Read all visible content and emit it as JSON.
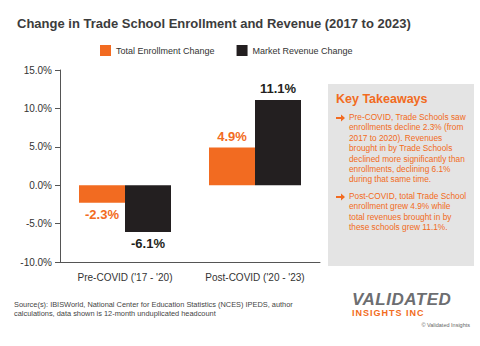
{
  "chart_data": {
    "type": "bar",
    "title": "Change in Trade School Enrollment and Revenue (2017 to 2023)",
    "categories": [
      "Pre-COVID ('17 - '20)",
      "Post-COVID ('20 - '23)"
    ],
    "series": [
      {
        "name": "Total Enrollment Change",
        "color": "#f26b21",
        "values": [
          -2.3,
          4.9
        ],
        "value_labels": [
          "-2.3%",
          "4.9%"
        ]
      },
      {
        "name": "Market Revenue Change",
        "color": "#231f20",
        "values": [
          -6.1,
          11.1
        ],
        "value_labels": [
          "-6.1%",
          "11.1%"
        ]
      }
    ],
    "ylim": [
      -10,
      15
    ],
    "yticks": [
      {
        "value": -10,
        "label": "-10.0%"
      },
      {
        "value": -5,
        "label": "-5.0%"
      },
      {
        "value": 0,
        "label": "0.0%"
      },
      {
        "value": 5,
        "label": "5.0%"
      },
      {
        "value": 10,
        "label": "10.0%"
      },
      {
        "value": 15,
        "label": "15.0%"
      }
    ],
    "grid": false,
    "legend": "top",
    "data_labels": true
  },
  "key_takeaways": {
    "title": "Key Takeaways",
    "items": [
      "Pre-COVID, Trade Schools saw enrollments decline 2.3% (from 2017 to 2020). Revenues brought in by Trade Schools declined more significantly than enrollments, declining 6.1% during that same time.",
      "Post-COVID, total Trade School enrollment grew 4.9% while total revenues brought in by these schools grew 11.1%."
    ]
  },
  "source": "Source(s): IBISWorld, National Center for Education Statistics (NCES) IPEDS, author calculations, data shown is 12-month unduplicated headcount",
  "logo": {
    "name": "VALIDATED",
    "subname": "INSIGHTS INC",
    "copyright": "© Validated Insights"
  }
}
